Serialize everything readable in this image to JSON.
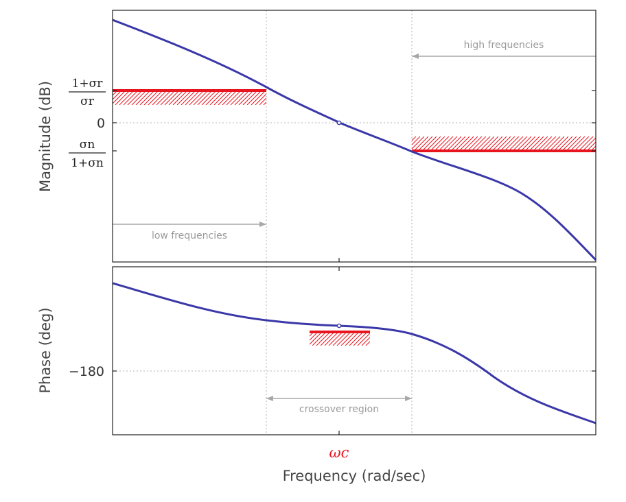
{
  "magnitude_plot": {
    "ylabel": "Magnitude (dB)",
    "zero_tick": "0",
    "upper_tick": {
      "numerator": "1+σr",
      "denominator": "σr"
    },
    "lower_tick": {
      "numerator": "σn",
      "denominator": "1+σn"
    },
    "annotations": {
      "low": "low frequencies",
      "high": "high frequencies"
    }
  },
  "phase_plot": {
    "ylabel": "Phase (deg)",
    "tick": "−180",
    "annotation": "crossover region"
  },
  "xaxis": {
    "crossover_label": "ωc",
    "xlabel": "Frequency (rad/sec)"
  },
  "colors": {
    "curve": "#3a38a8",
    "bound": "#e8141e",
    "annotation": "#a8a8a8"
  }
}
